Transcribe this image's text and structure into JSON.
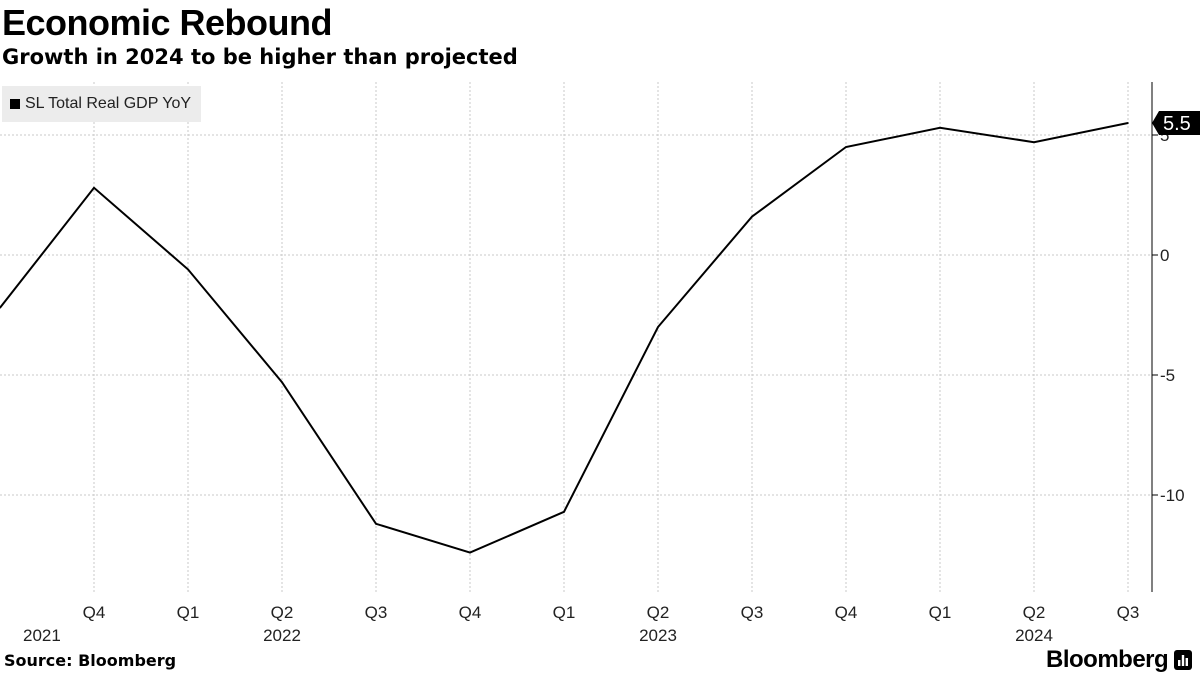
{
  "chart_data": {
    "type": "line",
    "title": "Economic Rebound",
    "subtitle": "Growth in 2024 to be higher than projected",
    "legend": {
      "label": "SL Total Real GDP YoY",
      "color": "#000000",
      "placement": "top-left"
    },
    "series": [
      {
        "name": "SL Total Real GDP YoY",
        "color": "#000000",
        "x": [
          "2021 Q3",
          "2021 Q4",
          "2022 Q1",
          "2022 Q2",
          "2022 Q3",
          "2022 Q4",
          "2023 Q1",
          "2023 Q2",
          "2023 Q3",
          "2023 Q4",
          "2024 Q1",
          "2024 Q2",
          "2024 Q3"
        ],
        "values": [
          -2.2,
          2.8,
          -0.6,
          -5.3,
          -11.2,
          -12.4,
          -10.7,
          -3.0,
          1.6,
          4.5,
          5.3,
          4.7,
          5.5
        ]
      }
    ],
    "x_ticks": [
      {
        "index": 1,
        "quarter": "Q4",
        "year": "2021"
      },
      {
        "index": 2,
        "quarter": "Q1",
        "year": ""
      },
      {
        "index": 3,
        "quarter": "Q2",
        "year": "2022"
      },
      {
        "index": 4,
        "quarter": "Q3",
        "year": ""
      },
      {
        "index": 5,
        "quarter": "Q4",
        "year": ""
      },
      {
        "index": 6,
        "quarter": "Q1",
        "year": ""
      },
      {
        "index": 7,
        "quarter": "Q2",
        "year": "2023"
      },
      {
        "index": 8,
        "quarter": "Q3",
        "year": ""
      },
      {
        "index": 9,
        "quarter": "Q4",
        "year": ""
      },
      {
        "index": 10,
        "quarter": "Q1",
        "year": ""
      },
      {
        "index": 11,
        "quarter": "Q2",
        "year": "2024"
      },
      {
        "index": 12,
        "quarter": "Q3",
        "year": ""
      }
    ],
    "first_year_label": "2021",
    "y_ticks": [
      5,
      0,
      -5,
      -10
    ],
    "ylim": [
      -14,
      7.2
    ],
    "last_value_label": "5.5",
    "grid": true,
    "y_axis_side": "right"
  },
  "footer": {
    "source": "Source: Bloomberg",
    "brand": "Bloomberg"
  }
}
